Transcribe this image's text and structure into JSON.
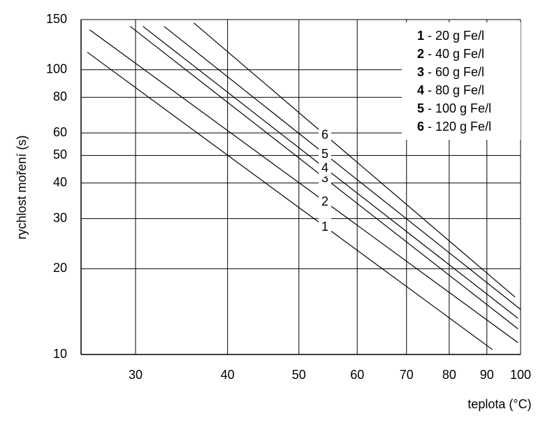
{
  "chart_data": {
    "type": "line",
    "x_label": "teplota (°C)",
    "y_label": "rychlost moření (s)",
    "log_x": true,
    "log_y": true,
    "grid": true,
    "legend": "upper right",
    "color": "#000000",
    "xlim": [
      25.3,
      100
    ],
    "xticks": [
      30,
      40,
      50,
      60,
      70,
      80,
      90,
      100
    ],
    "ylim": [
      10,
      150
    ],
    "yticks": [
      10,
      20,
      30,
      40,
      50,
      60,
      80,
      100,
      150
    ],
    "series": [
      {
        "name": "1 - 20 g Fe/l",
        "label": "1",
        "x": [
          25.8,
          91.6
        ],
        "values": [
          115.2,
          10.4
        ]
      },
      {
        "name": "2 - 40 g Fe/l",
        "label": "2",
        "x": [
          26.0,
          99.2
        ],
        "values": [
          138,
          11.0
        ]
      },
      {
        "name": "3 - 60 g Fe/l",
        "label": "3",
        "x": [
          29.5,
          99.2
        ],
        "values": [
          142,
          12.3
        ]
      },
      {
        "name": "4 - 80 g Fe/l",
        "label": "4",
        "x": [
          30.7,
          99.2
        ],
        "values": [
          142,
          13.4
        ]
      },
      {
        "name": "5 - 100 g Fe/l",
        "label": "5",
        "x": [
          32.8,
          100
        ],
        "values": [
          142,
          14.4
        ]
      },
      {
        "name": "6 - 120 g Fe/l",
        "label": "6",
        "x": [
          36.0,
          98.3
        ],
        "values": [
          146,
          15.9
        ]
      }
    ]
  }
}
